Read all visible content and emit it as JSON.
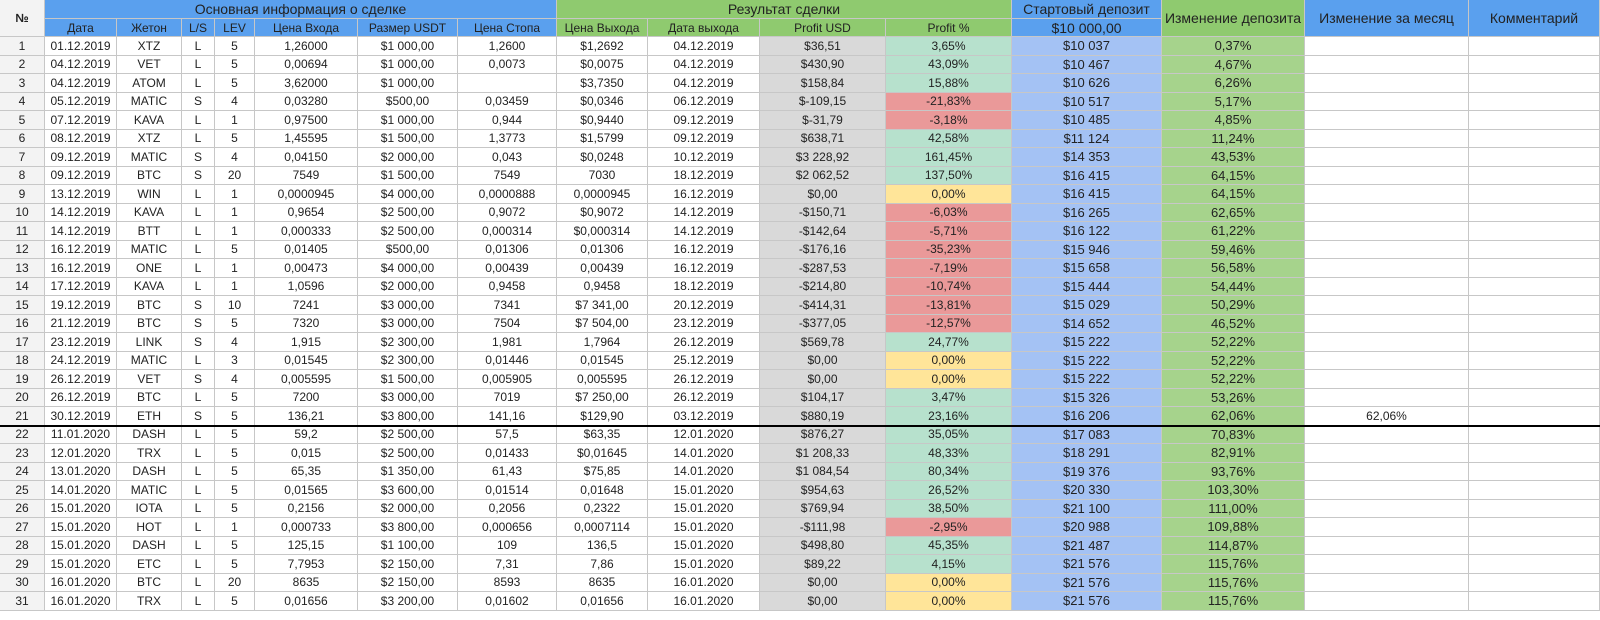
{
  "header": {
    "num": "№",
    "group_main": "Основная информация о сделке",
    "group_result": "Результат сделки",
    "start_deposit_label": "Стартовый депозит",
    "start_deposit_value": "$10 000,00",
    "deposit_change": "Изменение депозита",
    "monthly_change": "Изменение за месяц",
    "comment": "Комментарий",
    "columns": [
      "Дата",
      "Жетон",
      "L/S",
      "LEV",
      "Цена Входа",
      "Размер USDT",
      "Цена Стопа",
      "Цена Выхода",
      "Дата выхода",
      "Profit USD",
      "Profit %"
    ]
  },
  "colors": {
    "blue_header": "#5aa0ee",
    "green_header": "#8fca6f",
    "blue_cell": "#a4c2f4",
    "green_cell": "#a6d38c",
    "gray_cell": "#d9d9d9",
    "profit_pos": "#b7e1cd",
    "profit_neg": "#ea9999",
    "profit_zero": "#ffe599",
    "row_num_bg": "#f3f3f3"
  },
  "rows": [
    [
      "1",
      "01.12.2019",
      "XTZ",
      "L",
      "5",
      "1,26000",
      "$1 000,00",
      "1,2600",
      "$1,2692",
      "04.12.2019",
      "$36,51",
      "3,65%",
      "$10 037",
      "0,37%",
      "",
      ""
    ],
    [
      "2",
      "04.12.2019",
      "VET",
      "L",
      "5",
      "0,00694",
      "$1 000,00",
      "0,0073",
      "$0,0075",
      "04.12.2019",
      "$430,90",
      "43,09%",
      "$10 467",
      "4,67%",
      "",
      ""
    ],
    [
      "3",
      "04.12.2019",
      "ATOM",
      "L",
      "5",
      "3,62000",
      "$1 000,00",
      "",
      "$3,7350",
      "04.12.2019",
      "$158,84",
      "15,88%",
      "$10 626",
      "6,26%",
      "",
      ""
    ],
    [
      "4",
      "05.12.2019",
      "MATIC",
      "S",
      "4",
      "0,03280",
      "$500,00",
      "0,03459",
      "$0,0346",
      "06.12.2019",
      "$-109,15",
      "-21,83%",
      "$10 517",
      "5,17%",
      "",
      ""
    ],
    [
      "5",
      "07.12.2019",
      "KAVA",
      "L",
      "1",
      "0,97500",
      "$1 000,00",
      "0,944",
      "$0,9440",
      "09.12.2019",
      "$-31,79",
      "-3,18%",
      "$10 485",
      "4,85%",
      "",
      ""
    ],
    [
      "6",
      "08.12.2019",
      "XTZ",
      "L",
      "5",
      "1,45595",
      "$1 500,00",
      "1,3773",
      "$1,5799",
      "09.12.2019",
      "$638,71",
      "42,58%",
      "$11 124",
      "11,24%",
      "",
      ""
    ],
    [
      "7",
      "09.12.2019",
      "MATIC",
      "S",
      "4",
      "0,04150",
      "$2 000,00",
      "0,043",
      "$0,0248",
      "10.12.2019",
      "$3 228,92",
      "161,45%",
      "$14 353",
      "43,53%",
      "",
      ""
    ],
    [
      "8",
      "09.12.2019",
      "BTC",
      "S",
      "20",
      "7549",
      "$1 500,00",
      "7549",
      "7030",
      "18.12.2019",
      "$2 062,52",
      "137,50%",
      "$16 415",
      "64,15%",
      "",
      ""
    ],
    [
      "9",
      "13.12.2019",
      "WIN",
      "L",
      "1",
      "0,0000945",
      "$4 000,00",
      "0,0000888",
      "0,0000945",
      "16.12.2019",
      "$0,00",
      "0,00%",
      "$16 415",
      "64,15%",
      "",
      ""
    ],
    [
      "10",
      "14.12.2019",
      "KAVA",
      "L",
      "1",
      "0,9654",
      "$2 500,00",
      "0,9072",
      "$0,9072",
      "14.12.2019",
      "-$150,71",
      "-6,03%",
      "$16 265",
      "62,65%",
      "",
      ""
    ],
    [
      "11",
      "14.12.2019",
      "BTT",
      "L",
      "1",
      "0,000333",
      "$2 500,00",
      "0,000314",
      "$0,000314",
      "14.12.2019",
      "-$142,64",
      "-5,71%",
      "$16 122",
      "61,22%",
      "",
      ""
    ],
    [
      "12",
      "16.12.2019",
      "MATIC",
      "L",
      "5",
      "0,01405",
      "$500,00",
      "0,01306",
      "0,01306",
      "16.12.2019",
      "-$176,16",
      "-35,23%",
      "$15 946",
      "59,46%",
      "",
      ""
    ],
    [
      "13",
      "16.12.2019",
      "ONE",
      "L",
      "1",
      "0,00473",
      "$4 000,00",
      "0,00439",
      "0,00439",
      "16.12.2019",
      "-$287,53",
      "-7,19%",
      "$15 658",
      "56,58%",
      "",
      ""
    ],
    [
      "14",
      "17.12.2019",
      "KAVA",
      "L",
      "1",
      "1,0596",
      "$2 000,00",
      "0,9458",
      "0,9458",
      "18.12.2019",
      "-$214,80",
      "-10,74%",
      "$15 444",
      "54,44%",
      "",
      ""
    ],
    [
      "15",
      "19.12.2019",
      "BTC",
      "S",
      "10",
      "7241",
      "$3 000,00",
      "7341",
      "$7 341,00",
      "20.12.2019",
      "-$414,31",
      "-13,81%",
      "$15 029",
      "50,29%",
      "",
      ""
    ],
    [
      "16",
      "21.12.2019",
      "BTC",
      "S",
      "5",
      "7320",
      "$3 000,00",
      "7504",
      "$7 504,00",
      "23.12.2019",
      "-$377,05",
      "-12,57%",
      "$14 652",
      "46,52%",
      "",
      ""
    ],
    [
      "17",
      "23.12.2019",
      "LINK",
      "S",
      "4",
      "1,915",
      "$2 300,00",
      "1,981",
      "1,7964",
      "26.12.2019",
      "$569,78",
      "24,77%",
      "$15 222",
      "52,22%",
      "",
      ""
    ],
    [
      "18",
      "24.12.2019",
      "MATIC",
      "L",
      "3",
      "0,01545",
      "$2 300,00",
      "0,01446",
      "0,01545",
      "25.12.2019",
      "$0,00",
      "0,00%",
      "$15 222",
      "52,22%",
      "",
      ""
    ],
    [
      "19",
      "26.12.2019",
      "VET",
      "S",
      "4",
      "0,005595",
      "$1 500,00",
      "0,005905",
      "0,005595",
      "26.12.2019",
      "$0,00",
      "0,00%",
      "$15 222",
      "52,22%",
      "",
      ""
    ],
    [
      "20",
      "26.12.2019",
      "BTC",
      "L",
      "5",
      "7200",
      "$3 000,00",
      "7019",
      "$7 250,00",
      "26.12.2019",
      "$104,17",
      "3,47%",
      "$15 326",
      "53,26%",
      "",
      ""
    ],
    [
      "21",
      "30.12.2019",
      "ETH",
      "S",
      "5",
      "136,21",
      "$3 800,00",
      "141,16",
      "$129,90",
      "03.12.2019",
      "$880,19",
      "23,16%",
      "$16 206",
      "62,06%",
      "62,06%",
      ""
    ],
    [
      "22",
      "11.01.2020",
      "DASH",
      "L",
      "5",
      "59,2",
      "$2 500,00",
      "57,5",
      "$63,35",
      "12.01.2020",
      "$876,27",
      "35,05%",
      "$17 083",
      "70,83%",
      "",
      ""
    ],
    [
      "23",
      "12.01.2020",
      "TRX",
      "L",
      "5",
      "0,015",
      "$2 500,00",
      "0,01433",
      "$0,01645",
      "14.01.2020",
      "$1 208,33",
      "48,33%",
      "$18 291",
      "82,91%",
      "",
      ""
    ],
    [
      "24",
      "13.01.2020",
      "DASH",
      "L",
      "5",
      "65,35",
      "$1 350,00",
      "61,43",
      "$75,85",
      "14.01.2020",
      "$1 084,54",
      "80,34%",
      "$19 376",
      "93,76%",
      "",
      ""
    ],
    [
      "25",
      "14.01.2020",
      "MATIC",
      "L",
      "5",
      "0,01565",
      "$3 600,00",
      "0,01514",
      "0,01648",
      "15.01.2020",
      "$954,63",
      "26,52%",
      "$20 330",
      "103,30%",
      "",
      ""
    ],
    [
      "26",
      "15.01.2020",
      "IOTA",
      "L",
      "5",
      "0,2156",
      "$2 000,00",
      "0,2056",
      "0,2322",
      "15.01.2020",
      "$769,94",
      "38,50%",
      "$21 100",
      "111,00%",
      "",
      ""
    ],
    [
      "27",
      "15.01.2020",
      "HOT",
      "L",
      "1",
      "0,000733",
      "$3 800,00",
      "0,000656",
      "0,0007114",
      "15.01.2020",
      "-$111,98",
      "-2,95%",
      "$20 988",
      "109,88%",
      "",
      ""
    ],
    [
      "28",
      "15.01.2020",
      "DASH",
      "L",
      "5",
      "125,15",
      "$1 100,00",
      "109",
      "136,5",
      "15.01.2020",
      "$498,80",
      "45,35%",
      "$21 487",
      "114,87%",
      "",
      ""
    ],
    [
      "29",
      "15.01.2020",
      "ETC",
      "L",
      "5",
      "7,7953",
      "$2 150,00",
      "7,31",
      "7,86",
      "15.01.2020",
      "$89,22",
      "4,15%",
      "$21 576",
      "115,76%",
      "",
      ""
    ],
    [
      "30",
      "16.01.2020",
      "BTC",
      "L",
      "20",
      "8635",
      "$2 150,00",
      "8593",
      "8635",
      "16.01.2020",
      "$0,00",
      "0,00%",
      "$21 576",
      "115,76%",
      "",
      ""
    ],
    [
      "31",
      "16.01.2020",
      "TRX",
      "L",
      "5",
      "0,01656",
      "$3 200,00",
      "0,01602",
      "0,01656",
      "16.01.2020",
      "$0,00",
      "0,00%",
      "$21 576",
      "115,76%",
      "",
      ""
    ]
  ]
}
